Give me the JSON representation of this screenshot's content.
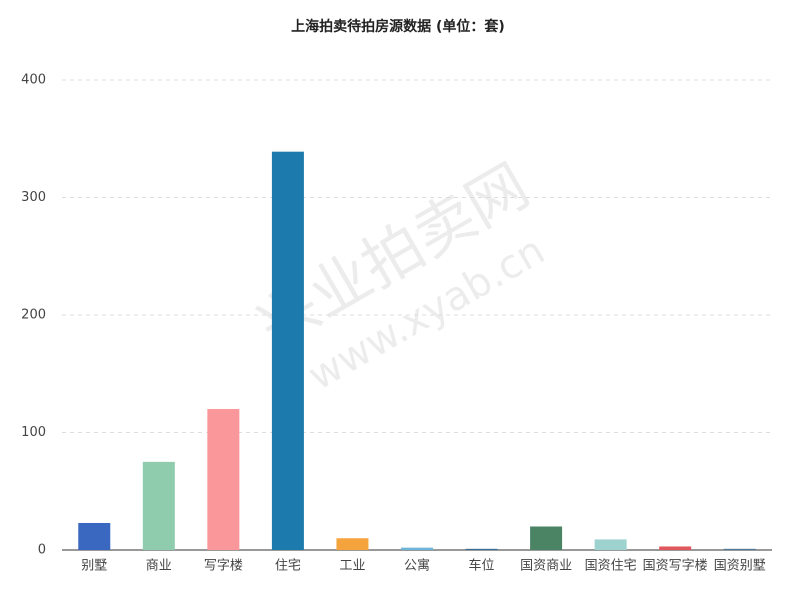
{
  "chart_data": {
    "type": "bar",
    "title": "上海拍卖待拍房源数据 (单位：套)",
    "categories": [
      "别墅",
      "商业",
      "写字楼",
      "住宅",
      "工业",
      "公寓",
      "车位",
      "国资商业",
      "国资住宅",
      "国资写字楼",
      "国资别墅"
    ],
    "values": [
      23,
      75,
      120,
      339,
      10,
      2,
      1,
      20,
      9,
      3,
      1
    ],
    "colors": [
      "#3a67c0",
      "#8fcbad",
      "#f9979a",
      "#1d7aad",
      "#f5a43d",
      "#6cb5d8",
      "#3c6e96",
      "#4a8464",
      "#9dd2cf",
      "#e0585d",
      "#4f7a9a"
    ],
    "ylim": [
      0,
      400
    ],
    "yticks": [
      0,
      100,
      200,
      300,
      400
    ],
    "grid": true,
    "watermark": [
      "兴业拍卖网",
      "www.xyab.cn"
    ]
  }
}
